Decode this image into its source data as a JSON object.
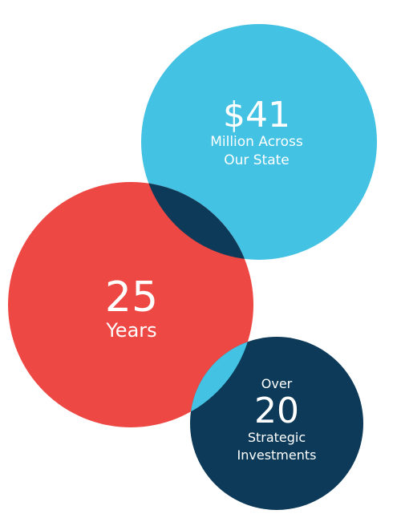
{
  "colors": {
    "blue": "#44C2E3",
    "red": "#EE4844",
    "navy": "#0C3A58",
    "text": "#FFFFFF"
  },
  "bubbles": {
    "funding": {
      "figure": "$41",
      "line1": "Million Across",
      "line2": "Our State"
    },
    "years": {
      "figure": "25",
      "line1": "Years"
    },
    "investments": {
      "prefix": "Over",
      "figure": "20",
      "line1": "Strategic",
      "line2": "Investments"
    }
  }
}
